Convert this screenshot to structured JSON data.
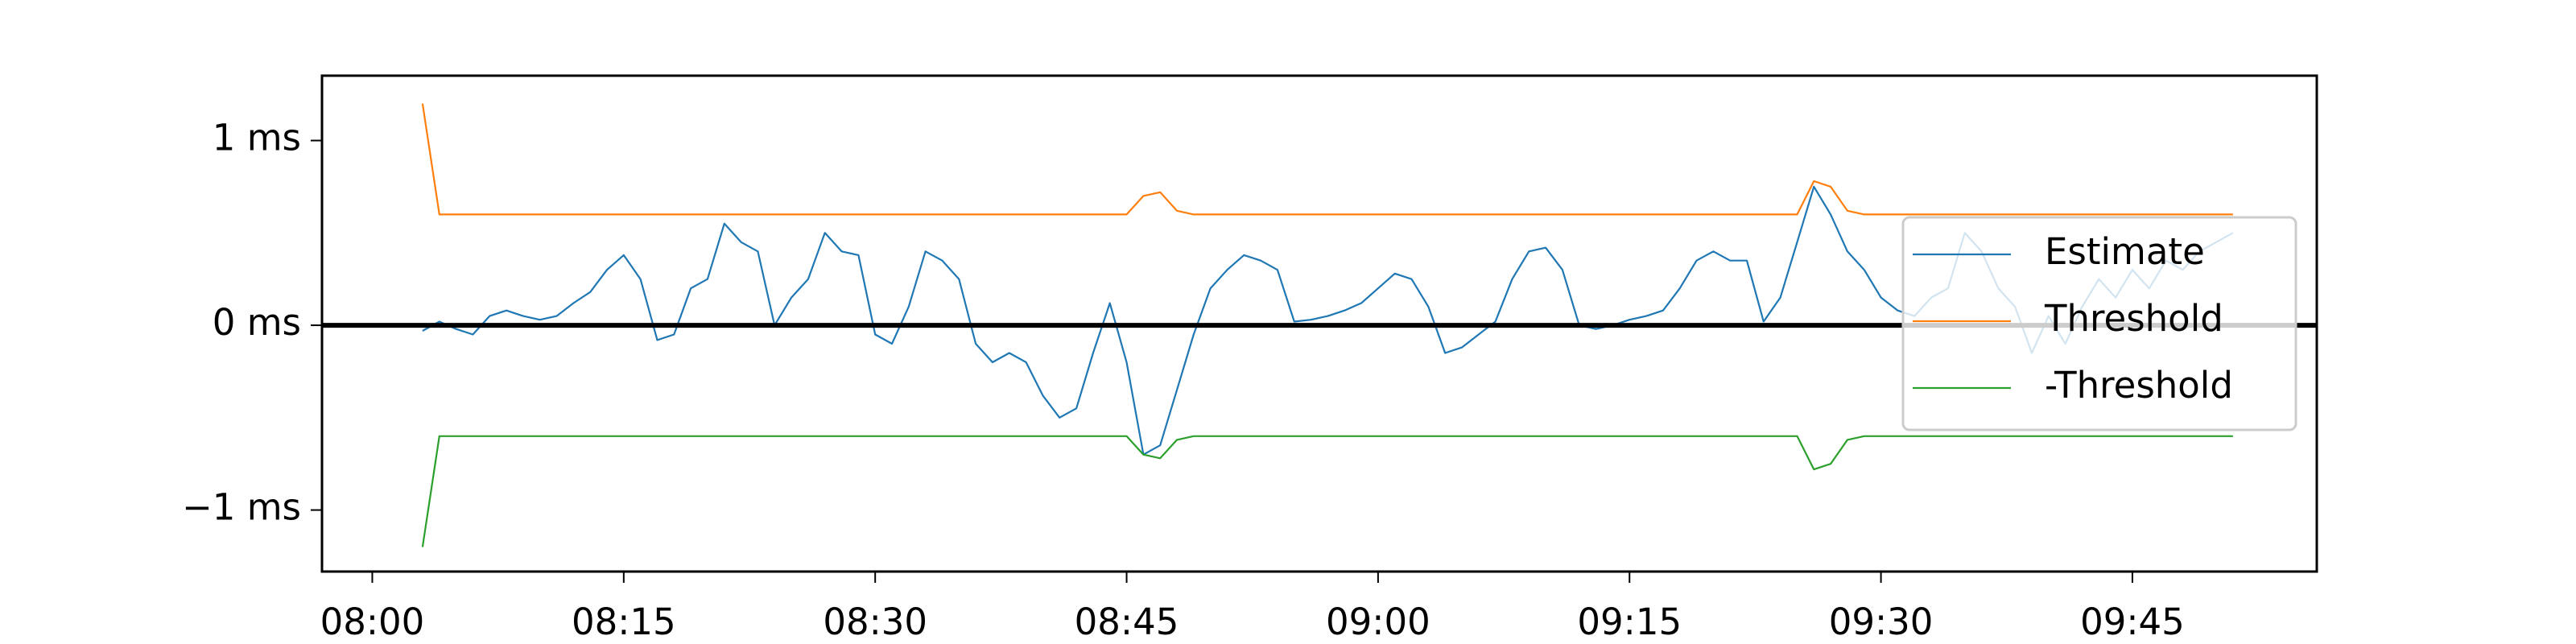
{
  "chart_data": {
    "type": "line",
    "x": [
      "08:03",
      "08:04",
      "08:05",
      "08:06",
      "08:07",
      "08:08",
      "08:09",
      "08:10",
      "08:11",
      "08:12",
      "08:13",
      "08:14",
      "08:15",
      "08:16",
      "08:17",
      "08:18",
      "08:19",
      "08:20",
      "08:21",
      "08:22",
      "08:23",
      "08:24",
      "08:25",
      "08:26",
      "08:27",
      "08:28",
      "08:29",
      "08:30",
      "08:31",
      "08:32",
      "08:33",
      "08:34",
      "08:35",
      "08:36",
      "08:37",
      "08:38",
      "08:39",
      "08:40",
      "08:41",
      "08:42",
      "08:43",
      "08:44",
      "08:45",
      "08:46",
      "08:47",
      "08:48",
      "08:49",
      "08:50",
      "08:51",
      "08:52",
      "08:53",
      "08:54",
      "08:55",
      "08:56",
      "08:57",
      "08:58",
      "08:59",
      "09:00",
      "09:01",
      "09:02",
      "09:03",
      "09:04",
      "09:05",
      "09:06",
      "09:07",
      "09:08",
      "09:09",
      "09:10",
      "09:11",
      "09:12",
      "09:13",
      "09:14",
      "09:15",
      "09:16",
      "09:17",
      "09:18",
      "09:19",
      "09:20",
      "09:21",
      "09:22",
      "09:23",
      "09:24",
      "09:25",
      "09:26",
      "09:27",
      "09:28",
      "09:29",
      "09:30",
      "09:31",
      "09:32",
      "09:33",
      "09:34",
      "09:35",
      "09:36",
      "09:37",
      "09:38",
      "09:39",
      "09:40",
      "09:41",
      "09:42",
      "09:43",
      "09:44",
      "09:45",
      "09:46",
      "09:47",
      "09:48",
      "09:49",
      "09:50",
      "09:51"
    ],
    "series": [
      {
        "name": "Estimate",
        "color": "#1f77b4",
        "values": [
          -0.03,
          0.02,
          -0.02,
          -0.05,
          0.05,
          0.08,
          0.05,
          0.03,
          0.05,
          0.12,
          0.18,
          0.3,
          0.38,
          0.25,
          -0.08,
          -0.05,
          0.2,
          0.25,
          0.55,
          0.45,
          0.4,
          0.0,
          0.15,
          0.25,
          0.5,
          0.4,
          0.38,
          -0.05,
          -0.1,
          0.1,
          0.4,
          0.35,
          0.25,
          -0.1,
          -0.2,
          -0.15,
          -0.2,
          -0.38,
          -0.5,
          -0.45,
          -0.15,
          0.12,
          -0.2,
          -0.7,
          -0.65,
          -0.35,
          -0.05,
          0.2,
          0.3,
          0.38,
          0.35,
          0.3,
          0.02,
          0.03,
          0.05,
          0.08,
          0.12,
          0.2,
          0.28,
          0.25,
          0.1,
          -0.15,
          -0.12,
          -0.05,
          0.02,
          0.25,
          0.4,
          0.42,
          0.3,
          0.0,
          -0.02,
          0.0,
          0.03,
          0.05,
          0.08,
          0.2,
          0.35,
          0.4,
          0.35,
          0.35,
          0.02,
          0.15,
          0.45,
          0.75,
          0.6,
          0.4,
          0.3,
          0.15,
          0.08,
          0.05,
          0.15,
          0.2,
          0.5,
          0.4,
          0.2,
          0.1,
          -0.15,
          0.05,
          -0.1,
          0.1,
          0.25,
          0.15,
          0.3,
          0.2,
          0.35,
          0.3,
          0.4,
          0.45,
          0.5
        ]
      },
      {
        "name": "Threshold",
        "color": "#ff7f0e",
        "values": [
          1.2,
          0.6,
          0.6,
          0.6,
          0.6,
          0.6,
          0.6,
          0.6,
          0.6,
          0.6,
          0.6,
          0.6,
          0.6,
          0.6,
          0.6,
          0.6,
          0.6,
          0.6,
          0.6,
          0.6,
          0.6,
          0.6,
          0.6,
          0.6,
          0.6,
          0.6,
          0.6,
          0.6,
          0.6,
          0.6,
          0.6,
          0.6,
          0.6,
          0.6,
          0.6,
          0.6,
          0.6,
          0.6,
          0.6,
          0.6,
          0.6,
          0.6,
          0.6,
          0.7,
          0.72,
          0.62,
          0.6,
          0.6,
          0.6,
          0.6,
          0.6,
          0.6,
          0.6,
          0.6,
          0.6,
          0.6,
          0.6,
          0.6,
          0.6,
          0.6,
          0.6,
          0.6,
          0.6,
          0.6,
          0.6,
          0.6,
          0.6,
          0.6,
          0.6,
          0.6,
          0.6,
          0.6,
          0.6,
          0.6,
          0.6,
          0.6,
          0.6,
          0.6,
          0.6,
          0.6,
          0.6,
          0.6,
          0.6,
          0.78,
          0.75,
          0.62,
          0.6,
          0.6,
          0.6,
          0.6,
          0.6,
          0.6,
          0.6,
          0.6,
          0.6,
          0.6,
          0.6,
          0.6,
          0.6,
          0.6,
          0.6,
          0.6,
          0.6,
          0.6,
          0.6,
          0.6,
          0.6,
          0.6,
          0.6
        ]
      },
      {
        "name": "-Threshold",
        "color": "#2ca02c",
        "values": [
          -1.2,
          -0.6,
          -0.6,
          -0.6,
          -0.6,
          -0.6,
          -0.6,
          -0.6,
          -0.6,
          -0.6,
          -0.6,
          -0.6,
          -0.6,
          -0.6,
          -0.6,
          -0.6,
          -0.6,
          -0.6,
          -0.6,
          -0.6,
          -0.6,
          -0.6,
          -0.6,
          -0.6,
          -0.6,
          -0.6,
          -0.6,
          -0.6,
          -0.6,
          -0.6,
          -0.6,
          -0.6,
          -0.6,
          -0.6,
          -0.6,
          -0.6,
          -0.6,
          -0.6,
          -0.6,
          -0.6,
          -0.6,
          -0.6,
          -0.6,
          -0.7,
          -0.72,
          -0.62,
          -0.6,
          -0.6,
          -0.6,
          -0.6,
          -0.6,
          -0.6,
          -0.6,
          -0.6,
          -0.6,
          -0.6,
          -0.6,
          -0.6,
          -0.6,
          -0.6,
          -0.6,
          -0.6,
          -0.6,
          -0.6,
          -0.6,
          -0.6,
          -0.6,
          -0.6,
          -0.6,
          -0.6,
          -0.6,
          -0.6,
          -0.6,
          -0.6,
          -0.6,
          -0.6,
          -0.6,
          -0.6,
          -0.6,
          -0.6,
          -0.6,
          -0.6,
          -0.6,
          -0.78,
          -0.75,
          -0.62,
          -0.6,
          -0.6,
          -0.6,
          -0.6,
          -0.6,
          -0.6,
          -0.6,
          -0.6,
          -0.6,
          -0.6,
          -0.6,
          -0.6,
          -0.6,
          -0.6,
          -0.6,
          -0.6,
          -0.6,
          -0.6,
          -0.6,
          -0.6,
          -0.6,
          -0.6,
          -0.6
        ]
      }
    ],
    "reference_line": 0,
    "xlim": [
      "07:57",
      "09:56"
    ],
    "xticks": [
      "08:00",
      "08:15",
      "08:30",
      "08:45",
      "09:00",
      "09:15",
      "09:30",
      "09:45"
    ],
    "ylim": [
      -1.333,
      1.351
    ],
    "yticks": [
      {
        "value": 1,
        "label": "1 ms"
      },
      {
        "value": 0,
        "label": "0 ms"
      },
      {
        "value": -1,
        "label": "−1 ms"
      }
    ],
    "grid": false,
    "legend": "center right"
  }
}
